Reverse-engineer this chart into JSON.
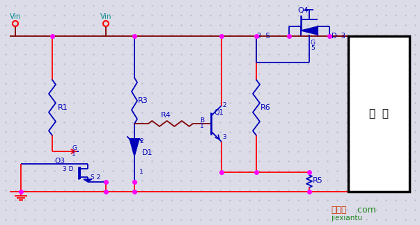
{
  "bg_color": "#dcdce8",
  "dot_color": "#b8b8cc",
  "wire_dark": "#800000",
  "wire_red": "#ff0000",
  "wire_blue": "#0000bb",
  "node_color": "#ff00ff",
  "text_blue": "#0000bb",
  "text_cyan": "#008888",
  "load_text": "负  载",
  "watermark1": "接线图",
  "watermark2": ".com",
  "watermark3": "jiexiantu"
}
